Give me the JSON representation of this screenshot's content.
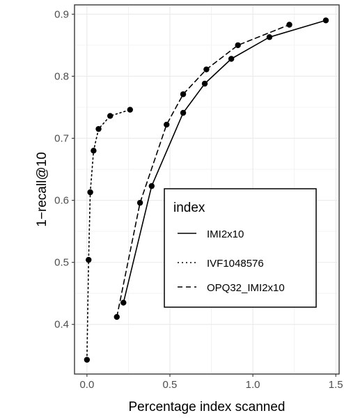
{
  "chart_data": {
    "type": "line",
    "title": "",
    "xlabel": "Percentage index scanned",
    "ylabel": "1−recall@10",
    "xlim": [
      -0.075,
      1.52
    ],
    "ylim": [
      0.32,
      0.915
    ],
    "xticks": [
      0.0,
      0.5,
      1.0,
      1.5
    ],
    "xtick_labels": [
      "0.0",
      "0.5",
      "1.0",
      "1.5"
    ],
    "yticks": [
      0.4,
      0.5,
      0.6,
      0.7,
      0.8,
      0.9
    ],
    "ytick_labels": [
      "0.4",
      "0.5",
      "0.6",
      "0.7",
      "0.8",
      "0.9"
    ],
    "grid": true,
    "legend": {
      "title": "index",
      "placement": "bottom-right inside plot"
    },
    "series": [
      {
        "name": "IMI2x10",
        "linestyle": "solid",
        "points": [
          {
            "x": 0.22,
            "y": 0.435
          },
          {
            "x": 0.39,
            "y": 0.623
          },
          {
            "x": 0.58,
            "y": 0.741
          },
          {
            "x": 0.71,
            "y": 0.788
          },
          {
            "x": 0.87,
            "y": 0.828
          },
          {
            "x": 1.1,
            "y": 0.863
          },
          {
            "x": 1.44,
            "y": 0.89
          }
        ]
      },
      {
        "name": "IVF1048576",
        "linestyle": "dotted",
        "points": [
          {
            "x": 0.0,
            "y": 0.343
          },
          {
            "x": 0.01,
            "y": 0.504
          },
          {
            "x": 0.02,
            "y": 0.613
          },
          {
            "x": 0.04,
            "y": 0.68
          },
          {
            "x": 0.07,
            "y": 0.715
          },
          {
            "x": 0.14,
            "y": 0.736
          },
          {
            "x": 0.26,
            "y": 0.746
          }
        ]
      },
      {
        "name": "OPQ32_IMI2x10",
        "linestyle": "dashed",
        "points": [
          {
            "x": 0.18,
            "y": 0.412
          },
          {
            "x": 0.32,
            "y": 0.596
          },
          {
            "x": 0.48,
            "y": 0.722
          },
          {
            "x": 0.58,
            "y": 0.771
          },
          {
            "x": 0.72,
            "y": 0.811
          },
          {
            "x": 0.91,
            "y": 0.85
          },
          {
            "x": 1.22,
            "y": 0.883
          }
        ]
      }
    ]
  }
}
